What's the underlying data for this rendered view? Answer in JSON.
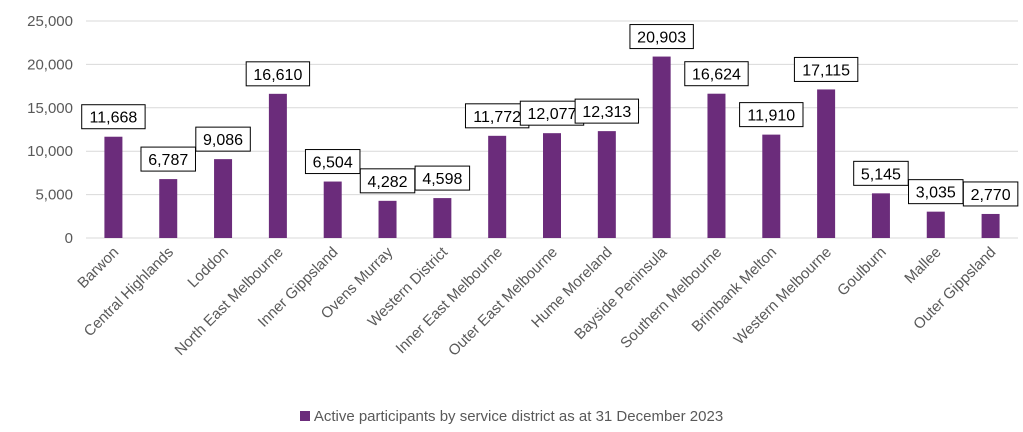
{
  "chart_data": {
    "type": "bar",
    "categories": [
      "Barwon",
      "Central Highlands",
      "Loddon",
      "North East Melbourne",
      "Inner Gippsland",
      "Ovens Murray",
      "Western District",
      "Inner East Melbourne",
      "Outer East Melbourne",
      "Hume Moreland",
      "Bayside Peninsula",
      "Southern Melbourne",
      "Brimbank Melton",
      "Western Melbourne",
      "Goulburn",
      "Mallee",
      "Outer Gippsland"
    ],
    "series": [
      {
        "name": "Active participants by service district as at 31 December 2023",
        "values": [
          11668,
          6787,
          9086,
          16610,
          6504,
          4282,
          4598,
          11772,
          12077,
          12313,
          20903,
          16624,
          11910,
          17115,
          5145,
          3035,
          2770
        ],
        "data_labels": [
          "11,668",
          "6,787",
          "9,086",
          "16,610",
          "6,504",
          "4,282",
          "4,598",
          "11,772",
          "12,077",
          "12,313",
          "20,903",
          "16,624",
          "11,910",
          "17,115",
          "5,145",
          "3,035",
          "2,770"
        ]
      }
    ],
    "y_ticks": [
      "0",
      "5,000",
      "10,000",
      "15,000",
      "20,000",
      "25,000"
    ],
    "ylim": [
      0,
      25000
    ],
    "grid": true,
    "legend_position": "bottom",
    "colors": {
      "bar": "#6B2C7B",
      "grid": "#D9D9D9",
      "text": "#595959"
    }
  }
}
